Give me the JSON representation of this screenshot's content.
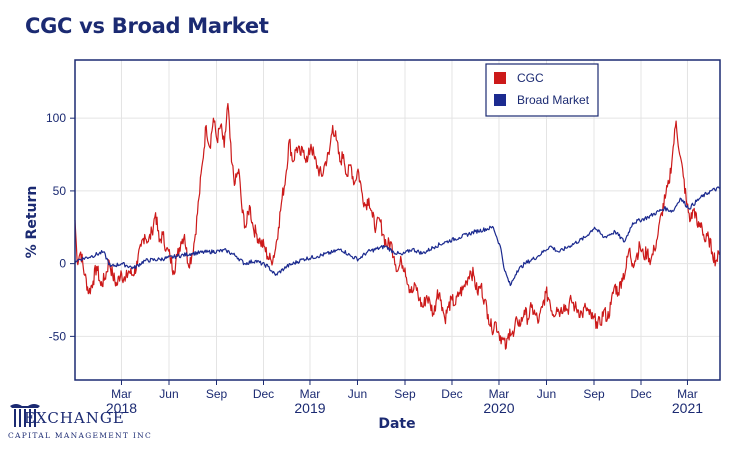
{
  "title": "CGC vs Broad Market",
  "logo": {
    "name": "EXCHANGE",
    "subtitle": "CAPITAL MANAGEMENT INC"
  },
  "colors": {
    "cgc": "#cc1a1a",
    "market": "#1b2a8f",
    "axis": "#1b2a72",
    "grid": "#e4e4e4"
  },
  "chart_data": {
    "type": "line",
    "title": "CGC vs Broad Market",
    "xlabel": "Date",
    "ylabel": "% Return",
    "x_range": [
      "2017-12-01",
      "2021-05-03"
    ],
    "ylim": [
      -80,
      140
    ],
    "y_ticks": [
      -50,
      0,
      50,
      100
    ],
    "x_ticks": [
      {
        "date": "2018-03-01",
        "label": "Mar"
      },
      {
        "date": "2018-06-01",
        "label": "Jun"
      },
      {
        "date": "2018-09-01",
        "label": "Sep"
      },
      {
        "date": "2018-12-01",
        "label": "Dec"
      },
      {
        "date": "2019-03-01",
        "label": "Mar"
      },
      {
        "date": "2019-06-01",
        "label": "Jun"
      },
      {
        "date": "2019-09-01",
        "label": "Sep"
      },
      {
        "date": "2019-12-01",
        "label": "Dec"
      },
      {
        "date": "2020-03-01",
        "label": "Mar"
      },
      {
        "date": "2020-06-01",
        "label": "Jun"
      },
      {
        "date": "2020-09-01",
        "label": "Sep"
      },
      {
        "date": "2020-12-01",
        "label": "Dec"
      },
      {
        "date": "2021-03-01",
        "label": "Mar"
      }
    ],
    "year_labels": [
      {
        "date": "2018-03-01",
        "label": "2018"
      },
      {
        "date": "2019-03-01",
        "label": "2019"
      },
      {
        "date": "2020-03-01",
        "label": "2020"
      },
      {
        "date": "2021-03-01",
        "label": "2021"
      }
    ],
    "grid": true,
    "legend": "top-right",
    "series": [
      {
        "name": "CGC",
        "color": "#cc1a1a",
        "points": [
          [
            "2017-12-01",
            30
          ],
          [
            "2017-12-05",
            2
          ],
          [
            "2017-12-12",
            8
          ],
          [
            "2017-12-20",
            -8
          ],
          [
            "2017-12-28",
            -20
          ],
          [
            "2018-01-05",
            -12
          ],
          [
            "2018-01-12",
            -2
          ],
          [
            "2018-01-20",
            -15
          ],
          [
            "2018-01-28",
            -10
          ],
          [
            "2018-02-05",
            2
          ],
          [
            "2018-02-12",
            -8
          ],
          [
            "2018-02-20",
            -15
          ],
          [
            "2018-02-28",
            -5
          ],
          [
            "2018-03-08",
            -12
          ],
          [
            "2018-03-15",
            -5
          ],
          [
            "2018-03-22",
            -8
          ],
          [
            "2018-04-01",
            0
          ],
          [
            "2018-04-08",
            12
          ],
          [
            "2018-04-15",
            20
          ],
          [
            "2018-04-22",
            15
          ],
          [
            "2018-04-29",
            22
          ],
          [
            "2018-05-06",
            35
          ],
          [
            "2018-05-13",
            15
          ],
          [
            "2018-05-20",
            20
          ],
          [
            "2018-05-27",
            10
          ],
          [
            "2018-06-03",
            5
          ],
          [
            "2018-06-10",
            -5
          ],
          [
            "2018-06-17",
            5
          ],
          [
            "2018-06-24",
            15
          ],
          [
            "2018-07-01",
            20
          ],
          [
            "2018-07-08",
            0
          ],
          [
            "2018-07-15",
            5
          ],
          [
            "2018-07-22",
            20
          ],
          [
            "2018-07-29",
            45
          ],
          [
            "2018-08-05",
            70
          ],
          [
            "2018-08-12",
            95
          ],
          [
            "2018-08-19",
            80
          ],
          [
            "2018-08-26",
            100
          ],
          [
            "2018-09-02",
            85
          ],
          [
            "2018-09-09",
            95
          ],
          [
            "2018-09-16",
            80
          ],
          [
            "2018-09-23",
            110
          ],
          [
            "2018-09-30",
            70
          ],
          [
            "2018-10-07",
            55
          ],
          [
            "2018-10-14",
            65
          ],
          [
            "2018-10-21",
            35
          ],
          [
            "2018-10-28",
            25
          ],
          [
            "2018-11-04",
            40
          ],
          [
            "2018-11-11",
            25
          ],
          [
            "2018-11-18",
            20
          ],
          [
            "2018-11-25",
            15
          ],
          [
            "2018-12-02",
            12
          ],
          [
            "2018-12-09",
            5
          ],
          [
            "2018-12-16",
            2
          ],
          [
            "2018-12-23",
            8
          ],
          [
            "2018-12-30",
            25
          ],
          [
            "2019-01-06",
            45
          ],
          [
            "2019-01-13",
            60
          ],
          [
            "2019-01-20",
            85
          ],
          [
            "2019-01-27",
            70
          ],
          [
            "2019-02-03",
            80
          ],
          [
            "2019-02-10",
            75
          ],
          [
            "2019-02-17",
            78
          ],
          [
            "2019-02-24",
            70
          ],
          [
            "2019-03-03",
            82
          ],
          [
            "2019-03-10",
            72
          ],
          [
            "2019-03-17",
            65
          ],
          [
            "2019-03-24",
            60
          ],
          [
            "2019-03-31",
            70
          ],
          [
            "2019-04-07",
            75
          ],
          [
            "2019-04-14",
            95
          ],
          [
            "2019-04-21",
            85
          ],
          [
            "2019-04-28",
            70
          ],
          [
            "2019-05-05",
            75
          ],
          [
            "2019-05-12",
            60
          ],
          [
            "2019-05-19",
            68
          ],
          [
            "2019-05-26",
            55
          ],
          [
            "2019-06-02",
            65
          ],
          [
            "2019-06-09",
            50
          ],
          [
            "2019-06-16",
            40
          ],
          [
            "2019-06-23",
            45
          ],
          [
            "2019-06-30",
            32
          ],
          [
            "2019-07-07",
            25
          ],
          [
            "2019-07-14",
            30
          ],
          [
            "2019-07-21",
            20
          ],
          [
            "2019-07-28",
            12
          ],
          [
            "2019-08-04",
            15
          ],
          [
            "2019-08-11",
            5
          ],
          [
            "2019-08-18",
            -5
          ],
          [
            "2019-08-25",
            2
          ],
          [
            "2019-09-01",
            -3
          ],
          [
            "2019-09-08",
            -15
          ],
          [
            "2019-09-15",
            -20
          ],
          [
            "2019-09-22",
            -15
          ],
          [
            "2019-09-29",
            -25
          ],
          [
            "2019-10-06",
            -30
          ],
          [
            "2019-10-13",
            -22
          ],
          [
            "2019-10-20",
            -28
          ],
          [
            "2019-10-27",
            -35
          ],
          [
            "2019-11-03",
            -18
          ],
          [
            "2019-11-10",
            -25
          ],
          [
            "2019-11-17",
            -38
          ],
          [
            "2019-11-24",
            -30
          ],
          [
            "2019-12-01",
            -25
          ],
          [
            "2019-12-08",
            -28
          ],
          [
            "2019-12-15",
            -20
          ],
          [
            "2019-12-22",
            -18
          ],
          [
            "2019-12-29",
            -12
          ],
          [
            "2020-01-05",
            -5
          ],
          [
            "2020-01-12",
            -8
          ],
          [
            "2020-01-19",
            -20
          ],
          [
            "2020-01-26",
            -15
          ],
          [
            "2020-02-02",
            -25
          ],
          [
            "2020-02-09",
            -35
          ],
          [
            "2020-02-16",
            -45
          ],
          [
            "2020-02-23",
            -40
          ],
          [
            "2020-03-01",
            -48
          ],
          [
            "2020-03-08",
            -52
          ],
          [
            "2020-03-15",
            -58
          ],
          [
            "2020-03-22",
            -45
          ],
          [
            "2020-03-29",
            -50
          ],
          [
            "2020-04-05",
            -38
          ],
          [
            "2020-04-12",
            -42
          ],
          [
            "2020-04-19",
            -32
          ],
          [
            "2020-04-26",
            -38
          ],
          [
            "2020-05-03",
            -30
          ],
          [
            "2020-05-10",
            -35
          ],
          [
            "2020-05-17",
            -40
          ],
          [
            "2020-05-24",
            -30
          ],
          [
            "2020-05-31",
            -20
          ],
          [
            "2020-06-07",
            -25
          ],
          [
            "2020-06-14",
            -35
          ],
          [
            "2020-06-21",
            -30
          ],
          [
            "2020-06-28",
            -33
          ],
          [
            "2020-07-05",
            -28
          ],
          [
            "2020-07-12",
            -32
          ],
          [
            "2020-07-19",
            -25
          ],
          [
            "2020-07-26",
            -30
          ],
          [
            "2020-08-02",
            -32
          ],
          [
            "2020-08-09",
            -35
          ],
          [
            "2020-08-16",
            -30
          ],
          [
            "2020-08-23",
            -35
          ],
          [
            "2020-08-30",
            -38
          ],
          [
            "2020-09-06",
            -40
          ],
          [
            "2020-09-13",
            -42
          ],
          [
            "2020-09-20",
            -32
          ],
          [
            "2020-09-27",
            -38
          ],
          [
            "2020-10-04",
            -28
          ],
          [
            "2020-10-11",
            -15
          ],
          [
            "2020-10-18",
            -20
          ],
          [
            "2020-10-25",
            -10
          ],
          [
            "2020-11-01",
            -5
          ],
          [
            "2020-11-08",
            10
          ],
          [
            "2020-11-15",
            0
          ],
          [
            "2020-11-22",
            5
          ],
          [
            "2020-11-29",
            12
          ],
          [
            "2020-12-06",
            5
          ],
          [
            "2020-12-13",
            8
          ],
          [
            "2020-12-20",
            2
          ],
          [
            "2020-12-27",
            10
          ],
          [
            "2021-01-03",
            20
          ],
          [
            "2021-01-10",
            35
          ],
          [
            "2021-01-17",
            45
          ],
          [
            "2021-01-24",
            55
          ],
          [
            "2021-01-31",
            75
          ],
          [
            "2021-02-07",
            98
          ],
          [
            "2021-02-14",
            75
          ],
          [
            "2021-02-21",
            60
          ],
          [
            "2021-02-28",
            40
          ],
          [
            "2021-03-07",
            30
          ],
          [
            "2021-03-14",
            38
          ],
          [
            "2021-03-21",
            25
          ],
          [
            "2021-03-28",
            28
          ],
          [
            "2021-04-04",
            15
          ],
          [
            "2021-04-11",
            18
          ],
          [
            "2021-04-18",
            8
          ],
          [
            "2021-04-25",
            2
          ],
          [
            "2021-05-02",
            6
          ]
        ]
      },
      {
        "name": "Broad Market",
        "color": "#1b2a8f",
        "points": [
          [
            "2017-12-01",
            2
          ],
          [
            "2018-01-01",
            5
          ],
          [
            "2018-01-25",
            8
          ],
          [
            "2018-02-08",
            -2
          ],
          [
            "2018-03-01",
            0
          ],
          [
            "2018-03-25",
            -3
          ],
          [
            "2018-04-15",
            2
          ],
          [
            "2018-05-15",
            3
          ],
          [
            "2018-06-15",
            5
          ],
          [
            "2018-07-15",
            7
          ],
          [
            "2018-08-15",
            8
          ],
          [
            "2018-09-20",
            9
          ],
          [
            "2018-10-10",
            5
          ],
          [
            "2018-10-25",
            0
          ],
          [
            "2018-11-15",
            2
          ],
          [
            "2018-12-10",
            -2
          ],
          [
            "2018-12-24",
            -8
          ],
          [
            "2019-01-15",
            -2
          ],
          [
            "2019-02-15",
            3
          ],
          [
            "2019-03-15",
            5
          ],
          [
            "2019-04-15",
            8
          ],
          [
            "2019-04-30",
            10
          ],
          [
            "2019-05-20",
            5
          ],
          [
            "2019-06-03",
            3
          ],
          [
            "2019-06-20",
            8
          ],
          [
            "2019-07-25",
            12
          ],
          [
            "2019-08-10",
            8
          ],
          [
            "2019-08-26",
            6
          ],
          [
            "2019-09-15",
            10
          ],
          [
            "2019-10-05",
            7
          ],
          [
            "2019-10-30",
            12
          ],
          [
            "2019-11-20",
            15
          ],
          [
            "2019-12-15",
            18
          ],
          [
            "2020-01-15",
            22
          ],
          [
            "2020-02-19",
            25
          ],
          [
            "2020-03-05",
            10
          ],
          [
            "2020-03-12",
            -5
          ],
          [
            "2020-03-23",
            -15
          ],
          [
            "2020-04-05",
            -5
          ],
          [
            "2020-04-20",
            0
          ],
          [
            "2020-05-15",
            5
          ],
          [
            "2020-06-08",
            12
          ],
          [
            "2020-06-25",
            8
          ],
          [
            "2020-07-15",
            12
          ],
          [
            "2020-08-15",
            18
          ],
          [
            "2020-09-02",
            25
          ],
          [
            "2020-09-20",
            18
          ],
          [
            "2020-10-12",
            22
          ],
          [
            "2020-10-30",
            15
          ],
          [
            "2020-11-15",
            28
          ],
          [
            "2020-12-15",
            32
          ],
          [
            "2021-01-15",
            38
          ],
          [
            "2021-02-01",
            36
          ],
          [
            "2021-02-15",
            45
          ],
          [
            "2021-03-04",
            38
          ],
          [
            "2021-03-25",
            45
          ],
          [
            "2021-04-15",
            50
          ],
          [
            "2021-05-03",
            52
          ]
        ]
      }
    ]
  }
}
